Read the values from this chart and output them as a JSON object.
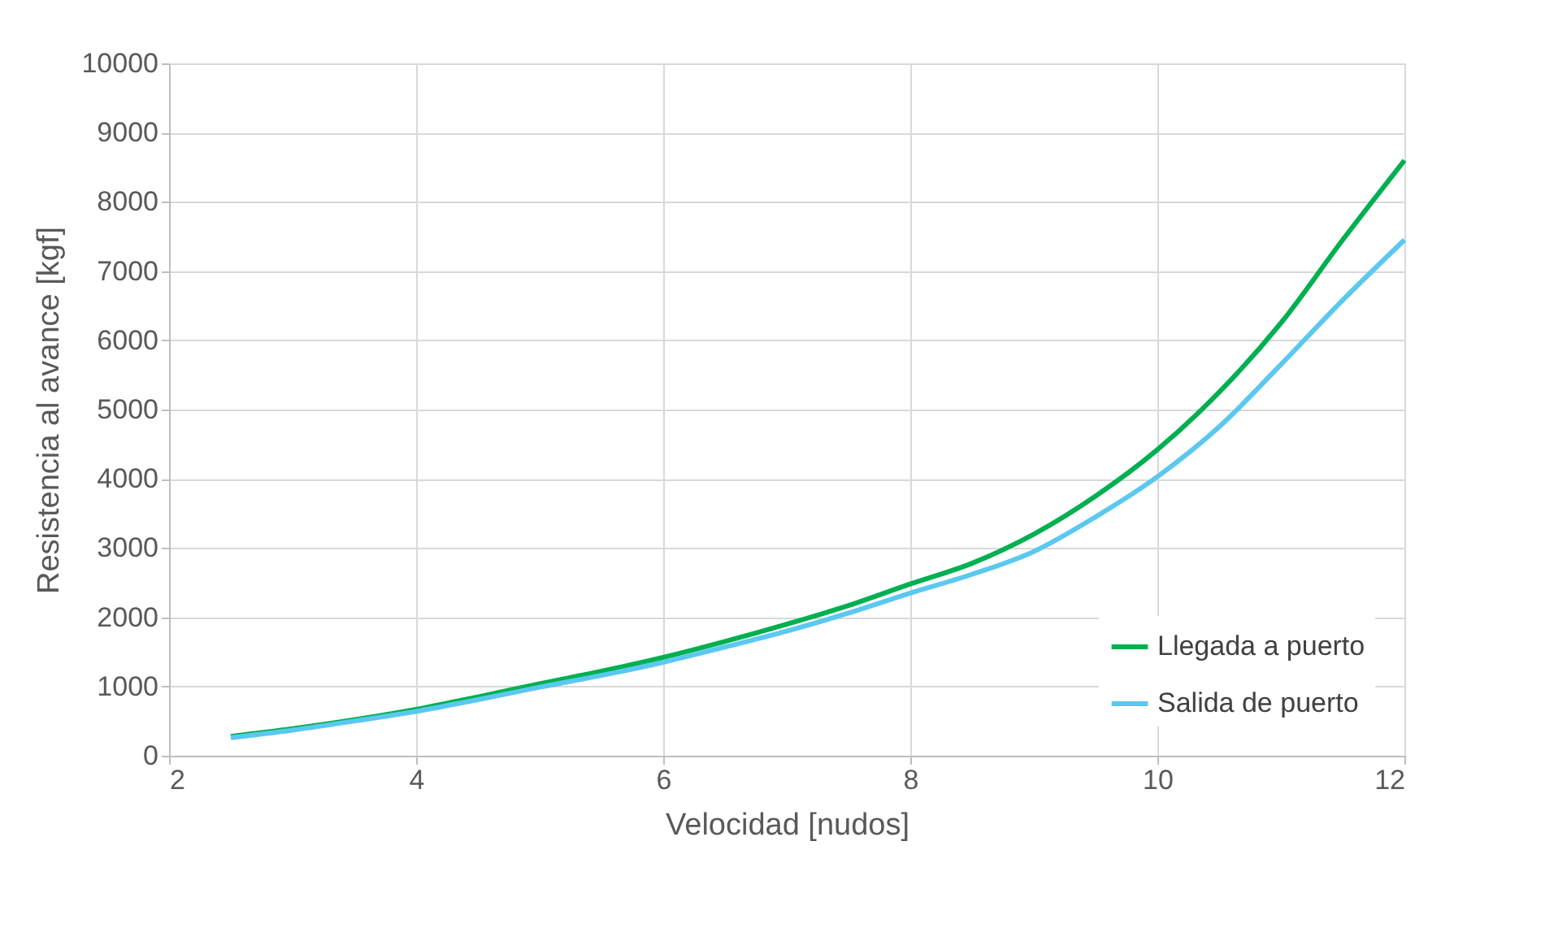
{
  "chart_data": {
    "type": "line",
    "xlabel": "Velocidad [nudos]",
    "ylabel": "Resistencia al avance [kgf]",
    "x": [
      2.5,
      3,
      3.5,
      4,
      4.5,
      5,
      5.5,
      6,
      6.5,
      7,
      7.5,
      8,
      8.5,
      9,
      9.5,
      10,
      10.5,
      11,
      11.5,
      12
    ],
    "series": [
      {
        "name": "Llegada a puerto",
        "color": "#00b050",
        "values": [
          280,
          390,
          520,
          670,
          850,
          1040,
          1220,
          1420,
          1650,
          1900,
          2170,
          2480,
          2780,
          3200,
          3750,
          4420,
          5250,
          6250,
          7450,
          8600
        ]
      },
      {
        "name": "Salida de puerto",
        "color": "#5bc8f0",
        "values": [
          260,
          370,
          500,
          640,
          810,
          990,
          1160,
          1350,
          1570,
          1800,
          2060,
          2350,
          2620,
          2950,
          3450,
          4030,
          4750,
          5650,
          6580,
          7450
        ]
      }
    ],
    "xlim": [
      2,
      12
    ],
    "xticks": [
      2,
      4,
      6,
      8,
      10,
      12
    ],
    "ylim": [
      0,
      10000
    ],
    "yticks": [
      0,
      1000,
      2000,
      3000,
      4000,
      5000,
      6000,
      7000,
      8000,
      9000,
      10000
    ],
    "grid": true,
    "legend": "bottom right",
    "marker": "none",
    "line_style": "solid"
  }
}
